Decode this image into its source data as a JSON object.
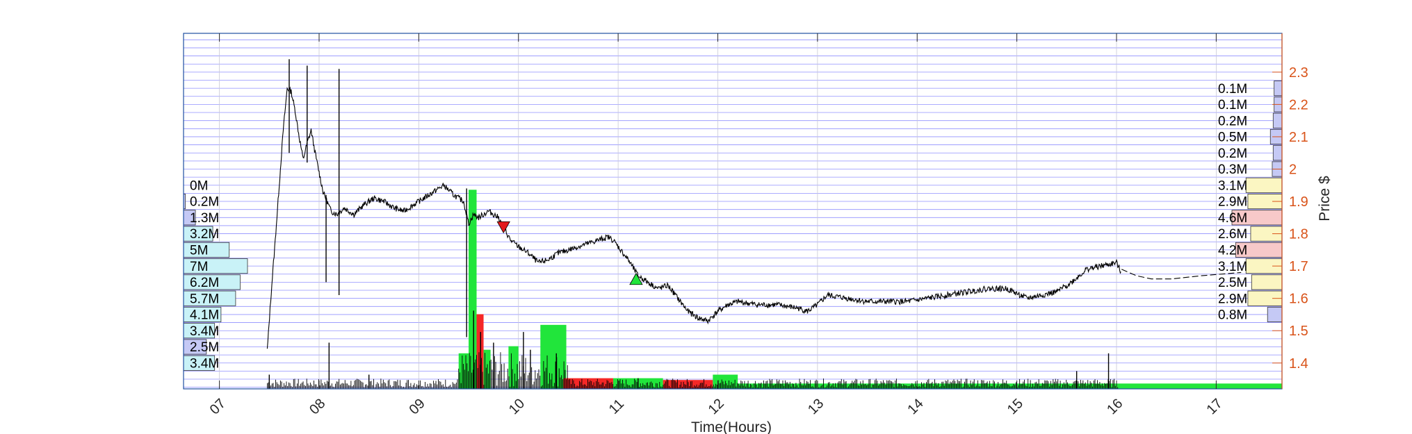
{
  "colors": {
    "frame": "#1f4fa0",
    "price_axis": "#d95319",
    "grid_h": "#6b6bff",
    "grid_v": "#c8c8d8",
    "buy_volume": "#21e53b",
    "sell_volume": "#f52727",
    "left_profile_fill": "#c9f2f7",
    "right_profile_high": "#c5c9f5",
    "right_profile_mid": "#fbf6c2",
    "right_profile_red": "#f7c9c9",
    "marker_sell": "#e41a1c",
    "marker_buy": "#21e53b"
  },
  "chart_data": {
    "type": "line",
    "subtype": "intraday price with volume and volume profiles",
    "xlabel": "Time(Hours)",
    "ylabel_right": "Price $",
    "x_ticks": [
      "07",
      "08",
      "09",
      "10",
      "11",
      "12",
      "13",
      "14",
      "15",
      "16",
      "17"
    ],
    "xlim": [
      6.64,
      17.66
    ],
    "y_ticks": [
      "1.4",
      "1.5",
      "1.6",
      "1.7",
      "1.8",
      "1.9",
      "2",
      "2.1",
      "2.2",
      "2.3"
    ],
    "ylim": [
      1.32,
      2.42
    ],
    "price_path": [
      [
        7.48,
        1.44
      ],
      [
        7.52,
        1.62
      ],
      [
        7.56,
        1.78
      ],
      [
        7.6,
        1.95
      ],
      [
        7.64,
        2.12
      ],
      [
        7.68,
        2.25
      ],
      [
        7.72,
        2.24
      ],
      [
        7.76,
        2.18
      ],
      [
        7.8,
        2.1
      ],
      [
        7.84,
        2.03
      ],
      [
        7.88,
        2.08
      ],
      [
        7.92,
        2.12
      ],
      [
        7.96,
        2.05
      ],
      [
        8.0,
        1.99
      ],
      [
        8.04,
        1.93
      ],
      [
        8.08,
        1.9
      ],
      [
        8.12,
        1.87
      ],
      [
        8.18,
        1.86
      ],
      [
        8.25,
        1.88
      ],
      [
        8.35,
        1.86
      ],
      [
        8.45,
        1.89
      ],
      [
        8.55,
        1.91
      ],
      [
        8.65,
        1.9
      ],
      [
        8.75,
        1.88
      ],
      [
        8.85,
        1.87
      ],
      [
        8.95,
        1.89
      ],
      [
        9.05,
        1.91
      ],
      [
        9.15,
        1.93
      ],
      [
        9.25,
        1.95
      ],
      [
        9.35,
        1.92
      ],
      [
        9.45,
        1.9
      ],
      [
        9.5,
        1.83
      ],
      [
        9.55,
        1.86
      ],
      [
        9.6,
        1.85
      ],
      [
        9.7,
        1.87
      ],
      [
        9.8,
        1.85
      ],
      [
        9.85,
        1.82
      ],
      [
        9.92,
        1.78
      ],
      [
        10.0,
        1.76
      ],
      [
        10.1,
        1.74
      ],
      [
        10.2,
        1.71
      ],
      [
        10.3,
        1.72
      ],
      [
        10.4,
        1.74
      ],
      [
        10.5,
        1.75
      ],
      [
        10.6,
        1.76
      ],
      [
        10.7,
        1.77
      ],
      [
        10.8,
        1.78
      ],
      [
        10.9,
        1.79
      ],
      [
        10.95,
        1.78
      ],
      [
        11.0,
        1.76
      ],
      [
        11.1,
        1.72
      ],
      [
        11.2,
        1.67
      ],
      [
        11.3,
        1.65
      ],
      [
        11.4,
        1.63
      ],
      [
        11.5,
        1.64
      ],
      [
        11.6,
        1.6
      ],
      [
        11.7,
        1.56
      ],
      [
        11.8,
        1.54
      ],
      [
        11.9,
        1.53
      ],
      [
        12.0,
        1.56
      ],
      [
        12.1,
        1.58
      ],
      [
        12.2,
        1.59
      ],
      [
        12.4,
        1.58
      ],
      [
        12.6,
        1.58
      ],
      [
        12.8,
        1.57
      ],
      [
        12.9,
        1.56
      ],
      [
        13.0,
        1.58
      ],
      [
        13.1,
        1.61
      ],
      [
        13.3,
        1.6
      ],
      [
        13.5,
        1.59
      ],
      [
        13.7,
        1.59
      ],
      [
        13.9,
        1.59
      ],
      [
        14.1,
        1.6
      ],
      [
        14.3,
        1.61
      ],
      [
        14.5,
        1.62
      ],
      [
        14.7,
        1.63
      ],
      [
        14.9,
        1.63
      ],
      [
        15.1,
        1.6
      ],
      [
        15.25,
        1.61
      ],
      [
        15.4,
        1.62
      ],
      [
        15.55,
        1.65
      ],
      [
        15.7,
        1.69
      ],
      [
        15.85,
        1.7
      ],
      [
        16.0,
        1.71
      ],
      [
        16.05,
        1.68
      ]
    ],
    "after_hours_path": [
      [
        16.05,
        1.69
      ],
      [
        16.2,
        1.67
      ],
      [
        16.35,
        1.66
      ],
      [
        16.55,
        1.66
      ],
      [
        16.85,
        1.67
      ],
      [
        17.25,
        1.68
      ]
    ],
    "spikes": [
      {
        "x": 7.7,
        "low": 2.05,
        "high": 2.34
      },
      {
        "x": 7.88,
        "low": 2.02,
        "high": 2.32
      },
      {
        "x": 8.07,
        "low": 1.65,
        "high": 1.92
      },
      {
        "x": 8.2,
        "low": 1.61,
        "high": 2.31
      },
      {
        "x": 9.48,
        "low": 1.48,
        "high": 1.94
      }
    ],
    "markers": [
      {
        "type": "sell",
        "x": 9.85,
        "y": 1.82
      },
      {
        "type": "buy",
        "x": 11.18,
        "y": 1.66
      }
    ],
    "volume_blocks": [
      {
        "x0": 9.4,
        "x1": 9.5,
        "h": 0.1,
        "side": "buy"
      },
      {
        "x0": 9.5,
        "x1": 9.58,
        "h": 0.56,
        "side": "buy"
      },
      {
        "x0": 9.58,
        "x1": 9.65,
        "h": 0.21,
        "side": "sell"
      },
      {
        "x0": 9.65,
        "x1": 9.72,
        "h": 0.11,
        "side": "buy"
      },
      {
        "x0": 9.9,
        "x1": 10.0,
        "h": 0.12,
        "side": "buy"
      },
      {
        "x0": 10.22,
        "x1": 10.48,
        "h": 0.18,
        "side": "buy"
      },
      {
        "x0": 10.45,
        "x1": 10.95,
        "h": 0.03,
        "side": "sell"
      },
      {
        "x0": 10.95,
        "x1": 11.45,
        "h": 0.03,
        "side": "buy"
      },
      {
        "x0": 11.45,
        "x1": 11.95,
        "h": 0.025,
        "side": "sell"
      },
      {
        "x0": 11.95,
        "x1": 12.2,
        "h": 0.04,
        "side": "buy"
      },
      {
        "x0": 12.2,
        "x1": 17.66,
        "h": 0.015,
        "side": "buy"
      }
    ],
    "volume_spikes": [
      {
        "x": 7.5,
        "h": 0.04
      },
      {
        "x": 8.1,
        "h": 0.13
      },
      {
        "x": 8.5,
        "h": 0.04
      },
      {
        "x": 9.55,
        "h": 0.22
      },
      {
        "x": 9.62,
        "h": 0.16
      },
      {
        "x": 9.75,
        "h": 0.13
      },
      {
        "x": 10.05,
        "h": 0.16
      },
      {
        "x": 10.12,
        "h": 0.11
      },
      {
        "x": 10.38,
        "h": 0.1
      },
      {
        "x": 11.2,
        "h": 0.03
      },
      {
        "x": 15.6,
        "h": 0.05
      },
      {
        "x": 15.92,
        "h": 0.1
      }
    ],
    "left_volume_profile": {
      "labels": [
        "0M",
        "0.2M",
        "1.3M",
        "3.2M",
        "5M",
        "7M",
        "6.2M",
        "5.7M",
        "4.1M",
        "3.4M",
        "2.5M",
        "3.4M"
      ],
      "values": [
        0,
        0.2,
        1.3,
        3.2,
        5,
        7,
        6.2,
        5.7,
        4.1,
        3.4,
        2.5,
        3.4
      ],
      "price_top": 1.95,
      "price_step": 0.05
    },
    "right_volume_profile": {
      "labels": [
        "0.1M",
        "0.1M",
        "0.2M",
        "0.5M",
        "0.2M",
        "0.3M",
        "3.1M",
        "2.9M",
        "4.6M",
        "2.6M",
        "4.2M",
        "3.1M",
        "2.5M",
        "2.9M",
        "0.8M"
      ],
      "values": [
        0.1,
        0.1,
        0.2,
        0.5,
        0.2,
        0.3,
        3.1,
        2.9,
        4.6,
        2.6,
        4.2,
        3.1,
        2.5,
        2.9,
        0.8
      ],
      "kinds": [
        "high",
        "high",
        "high",
        "high",
        "high",
        "high",
        "mid",
        "mid",
        "red",
        "mid",
        "red",
        "mid",
        "mid",
        "mid",
        "high"
      ],
      "price_top": 2.25,
      "price_step": 0.05
    },
    "grid": true
  }
}
